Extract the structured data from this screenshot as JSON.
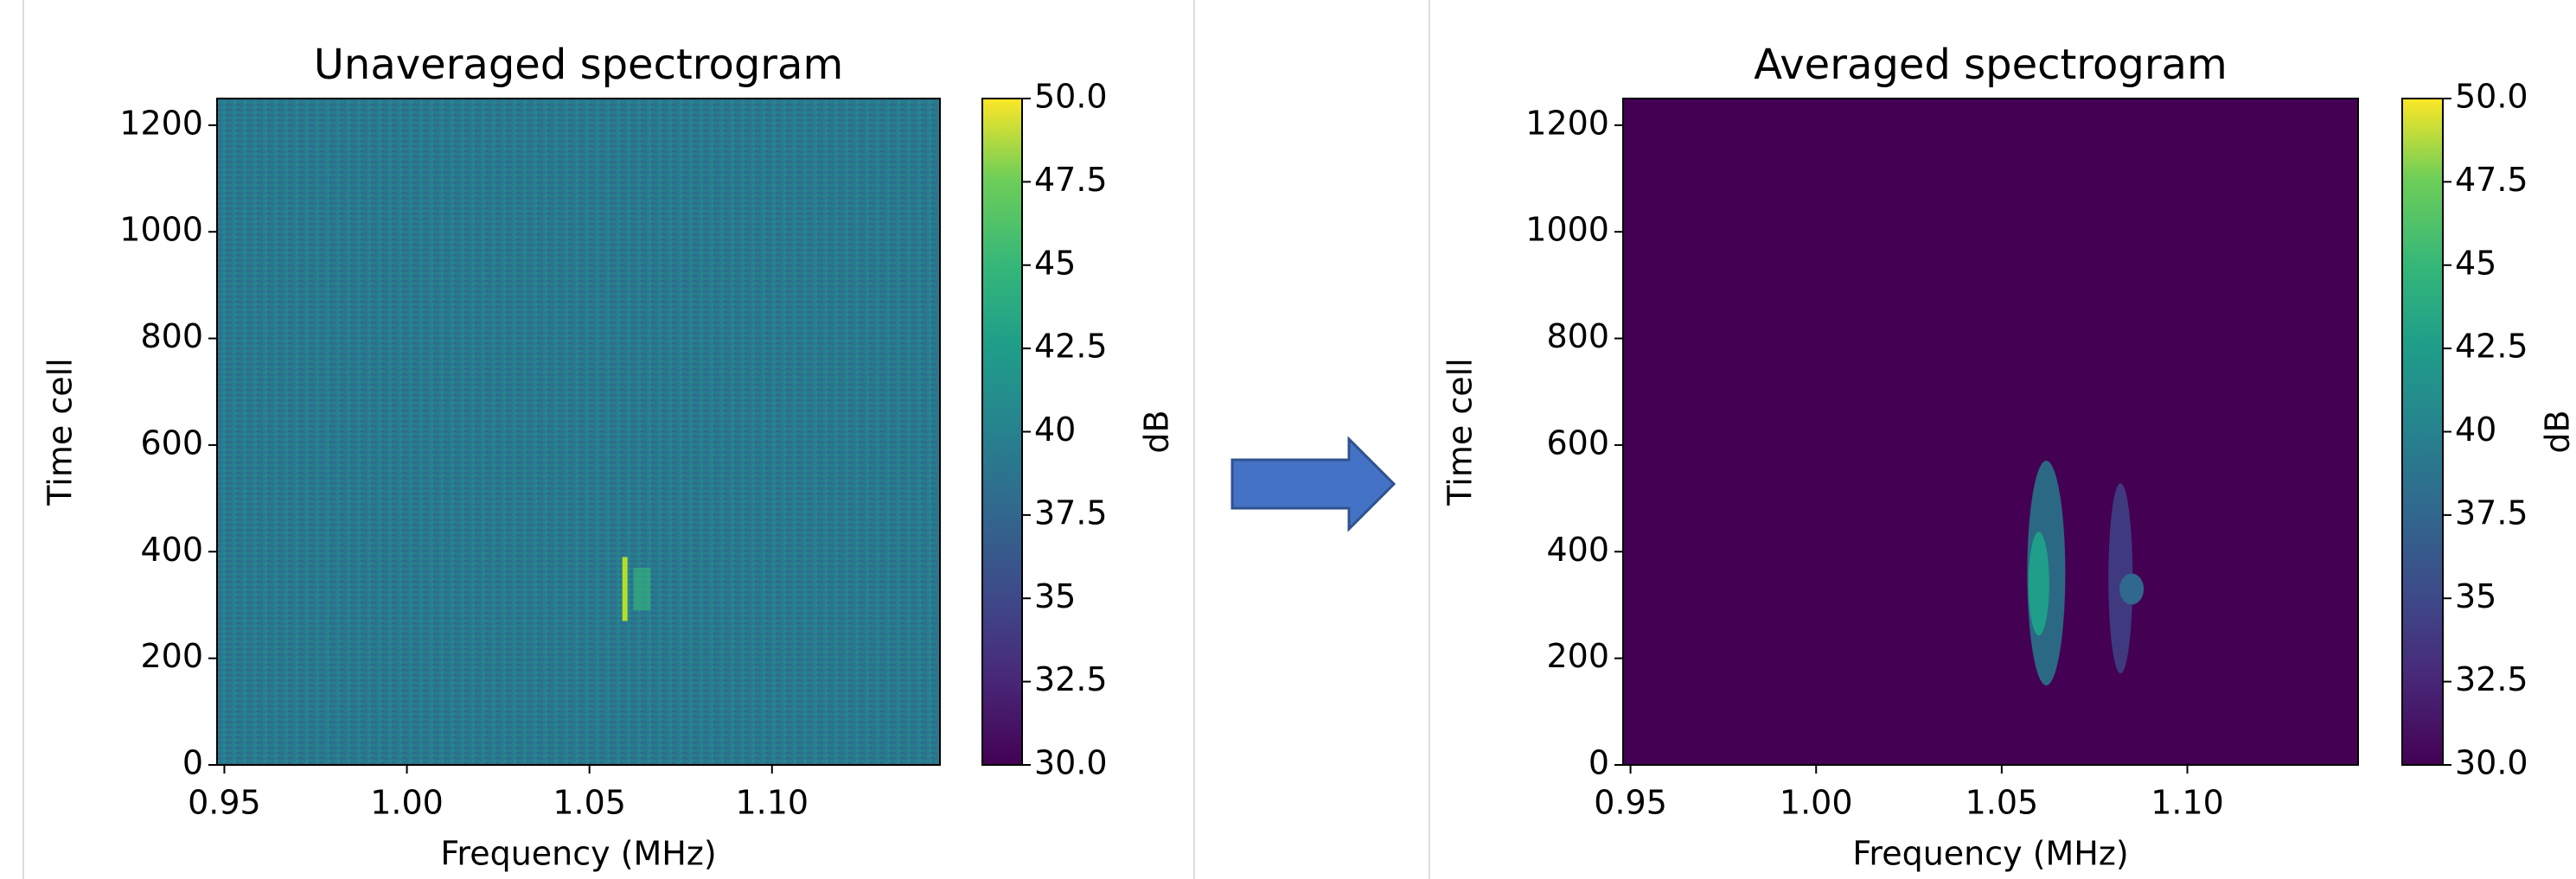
{
  "chart_data": [
    {
      "type": "heatmap",
      "title": "Unaveraged spectrogram",
      "xlabel": "Frequency (MHz)",
      "ylabel": "Time cell",
      "colorbar_label": "dB",
      "colormap": "viridis",
      "xlim": [
        0.948,
        1.146
      ],
      "xticks": [
        0.95,
        {
          "value": 1.0,
          "label": "1.00"
        },
        1.05,
        {
          "value": 1.1,
          "label": "1.10"
        }
      ],
      "ylim": [
        0,
        1250
      ],
      "yticks": [
        0,
        200,
        400,
        600,
        800,
        1000,
        1200
      ],
      "clim": [
        30,
        50
      ],
      "cticks": [
        {
          "value": 30,
          "label": "30.0"
        },
        32.5,
        35,
        37.5,
        40,
        42.5,
        45,
        47.5,
        {
          "value": 50,
          "label": "50.0"
        }
      ]
    },
    {
      "type": "heatmap",
      "title": "Averaged spectrogram",
      "xlabel": "Frequency (MHz)",
      "ylabel": "Time cell",
      "colorbar_label": "dB",
      "colormap": "viridis",
      "xlim": [
        0.948,
        1.146
      ],
      "xticks": [
        0.95,
        {
          "value": 1.0,
          "label": "1.00"
        },
        1.05,
        {
          "value": 1.1,
          "label": "1.10"
        }
      ],
      "ylim": [
        0,
        1250
      ],
      "yticks": [
        0,
        200,
        400,
        600,
        800,
        1000,
        1200
      ],
      "clim": [
        30,
        50
      ],
      "cticks": [
        {
          "value": 30,
          "label": "30.0"
        },
        32.5,
        35,
        37.5,
        40,
        42.5,
        45,
        47.5,
        {
          "value": 50,
          "label": "50.0"
        }
      ]
    }
  ]
}
